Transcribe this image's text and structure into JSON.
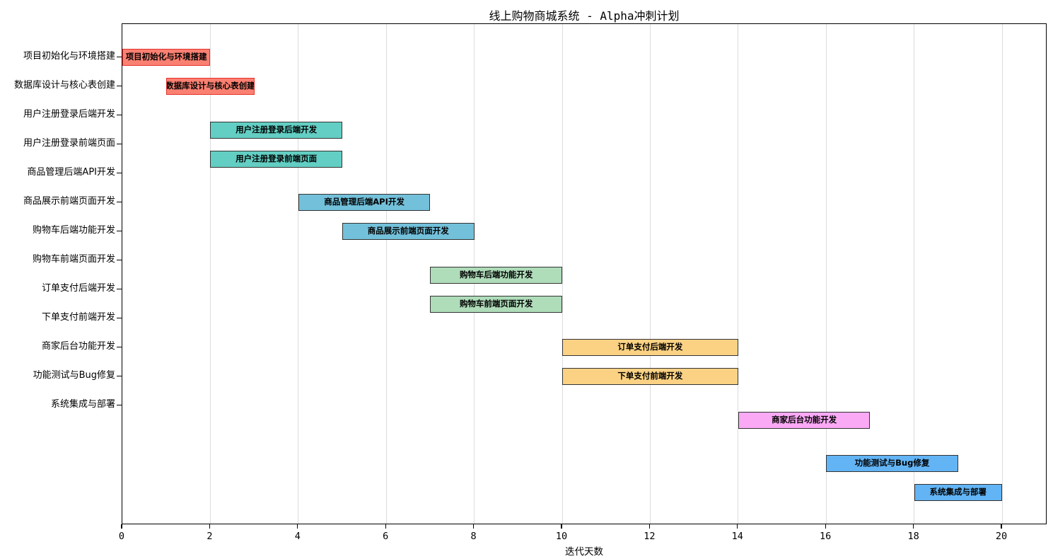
{
  "chart_data": {
    "type": "bar",
    "subtype": "gantt",
    "title": "线上购物商城系统 - Alpha冲刺计划",
    "xlabel": "迭代天数",
    "ylabel": "",
    "x_ticks": [
      0,
      2,
      4,
      6,
      8,
      10,
      12,
      14,
      16,
      18,
      20
    ],
    "xlim": [
      0,
      21
    ],
    "grid": "vertical gridlines at labeled x ticks only, light gray",
    "legend": "none",
    "grid_color": "#dcdcdc",
    "axis_color": "#000000",
    "y_axis_labels": [
      "项目初始化与环境搭建",
      "数据库设计与核心表创建",
      "用户注册登录后端开发",
      "用户注册登录前端页面",
      "商品管理后端API开发",
      "商品展示前端页面开发",
      "购物车后端功能开发",
      "购物车前端页面开发",
      "订单支付后端开发",
      "下单支付前端开发",
      "商家后台功能开发",
      "功能测试与Bug修复",
      "系统集成与部署"
    ],
    "tasks": [
      {
        "label": "项目初始化与环境搭建",
        "start": 0,
        "end": 2,
        "duration": 2,
        "row": 0,
        "fill": "#FA8072",
        "border": "#E53228"
      },
      {
        "label": "数据库设计与核心表创建",
        "start": 1,
        "end": 3,
        "duration": 2,
        "row": 1,
        "fill": "#FA8072",
        "border": "#E53228"
      },
      {
        "label": "用户注册登录后端开发",
        "start": 2,
        "end": 5,
        "duration": 3,
        "row": 2.5,
        "fill": "#63CEC3",
        "border": "#333333"
      },
      {
        "label": "用户注册登录前端页面",
        "start": 2,
        "end": 5,
        "duration": 3,
        "row": 3.5,
        "fill": "#63CEC3",
        "border": "#333333"
      },
      {
        "label": "商品管理后端API开发",
        "start": 4,
        "end": 7,
        "duration": 3,
        "row": 5,
        "fill": "#73C0DA",
        "border": "#333333"
      },
      {
        "label": "商品展示前端页面开发",
        "start": 5,
        "end": 8,
        "duration": 3,
        "row": 6,
        "fill": "#73C0DA",
        "border": "#333333"
      },
      {
        "label": "购物车后端功能开发",
        "start": 7,
        "end": 10,
        "duration": 3,
        "row": 7.5,
        "fill": "#AFDCB9",
        "border": "#333333"
      },
      {
        "label": "购物车前端页面开发",
        "start": 7,
        "end": 10,
        "duration": 3,
        "row": 8.5,
        "fill": "#AFDCB9",
        "border": "#333333"
      },
      {
        "label": "订单支付后端开发",
        "start": 10,
        "end": 14,
        "duration": 4,
        "row": 10,
        "fill": "#FBD284",
        "border": "#333333"
      },
      {
        "label": "下单支付前端开发",
        "start": 10,
        "end": 14,
        "duration": 4,
        "row": 11,
        "fill": "#FBD284",
        "border": "#333333"
      },
      {
        "label": "商家后台功能开发",
        "start": 14,
        "end": 17,
        "duration": 3,
        "row": 12.5,
        "fill": "#FAA9F5",
        "border": "#333333"
      },
      {
        "label": "功能测试与Bug修复",
        "start": 16,
        "end": 19,
        "duration": 3,
        "row": 14,
        "fill": "#62B4F5",
        "border": "#333333"
      },
      {
        "label": "系统集成与部署",
        "start": 18,
        "end": 20,
        "duration": 2,
        "row": 15,
        "fill": "#62B4F5",
        "border": "#333333"
      }
    ]
  }
}
